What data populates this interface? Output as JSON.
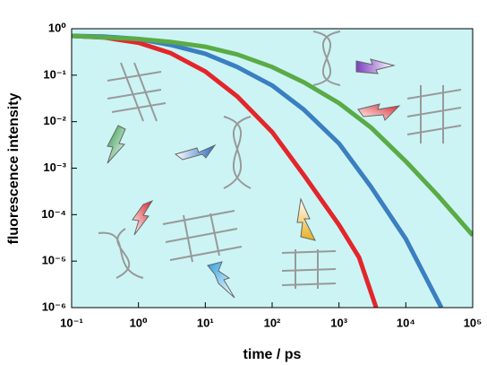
{
  "chart_data": {
    "type": "line",
    "x_label": "time / ps",
    "y_label": "fluorescence intensity",
    "xlog": true,
    "ylog": true,
    "background": "#ccf4f4",
    "xlim": [
      0.1,
      100000
    ],
    "ylim": [
      1e-06,
      1
    ],
    "xticks": [
      {
        "value": 0.1,
        "label": "10⁻¹"
      },
      {
        "value": 1,
        "label": "10⁰"
      },
      {
        "value": 10,
        "label": "10¹"
      },
      {
        "value": 100,
        "label": "10²"
      },
      {
        "value": 1000,
        "label": "10³"
      },
      {
        "value": 10000,
        "label": "10⁴"
      },
      {
        "value": 100000,
        "label": "10⁵"
      }
    ],
    "yticks": [
      {
        "value": 1e-06,
        "label": "10⁻⁶"
      },
      {
        "value": 1e-05,
        "label": "10⁻⁵"
      },
      {
        "value": 0.0001,
        "label": "10⁻⁴"
      },
      {
        "value": 0.001,
        "label": "10⁻³"
      },
      {
        "value": 0.01,
        "label": "10⁻²"
      },
      {
        "value": 0.1,
        "label": "10⁻¹"
      },
      {
        "value": 1,
        "label": "10⁰"
      }
    ],
    "series": [
      {
        "color": "#e3262b",
        "x": [
          0.1,
          0.3,
          1,
          3,
          10,
          30,
          100,
          300,
          1000,
          2000,
          3600
        ],
        "values": [
          0.7,
          0.65,
          0.5,
          0.3,
          0.12,
          0.035,
          0.006,
          0.0007,
          6e-05,
          1.2e-05,
          1e-06
        ]
      },
      {
        "color": "#3b7fc2",
        "x": [
          0.1,
          0.3,
          1,
          3,
          10,
          30,
          100,
          300,
          1000,
          3000,
          10000,
          34000
        ],
        "values": [
          0.7,
          0.68,
          0.6,
          0.45,
          0.29,
          0.15,
          0.06,
          0.018,
          0.0034,
          0.0004,
          3e-05,
          1e-06
        ]
      },
      {
        "color": "#5aab46",
        "x": [
          0.1,
          1,
          3,
          10,
          30,
          100,
          300,
          1000,
          3000,
          10000,
          30000,
          100000
        ],
        "values": [
          0.7,
          0.6,
          0.52,
          0.41,
          0.28,
          0.15,
          0.07,
          0.025,
          0.0075,
          0.0014,
          0.00026,
          3.6e-05
        ]
      }
    ]
  }
}
